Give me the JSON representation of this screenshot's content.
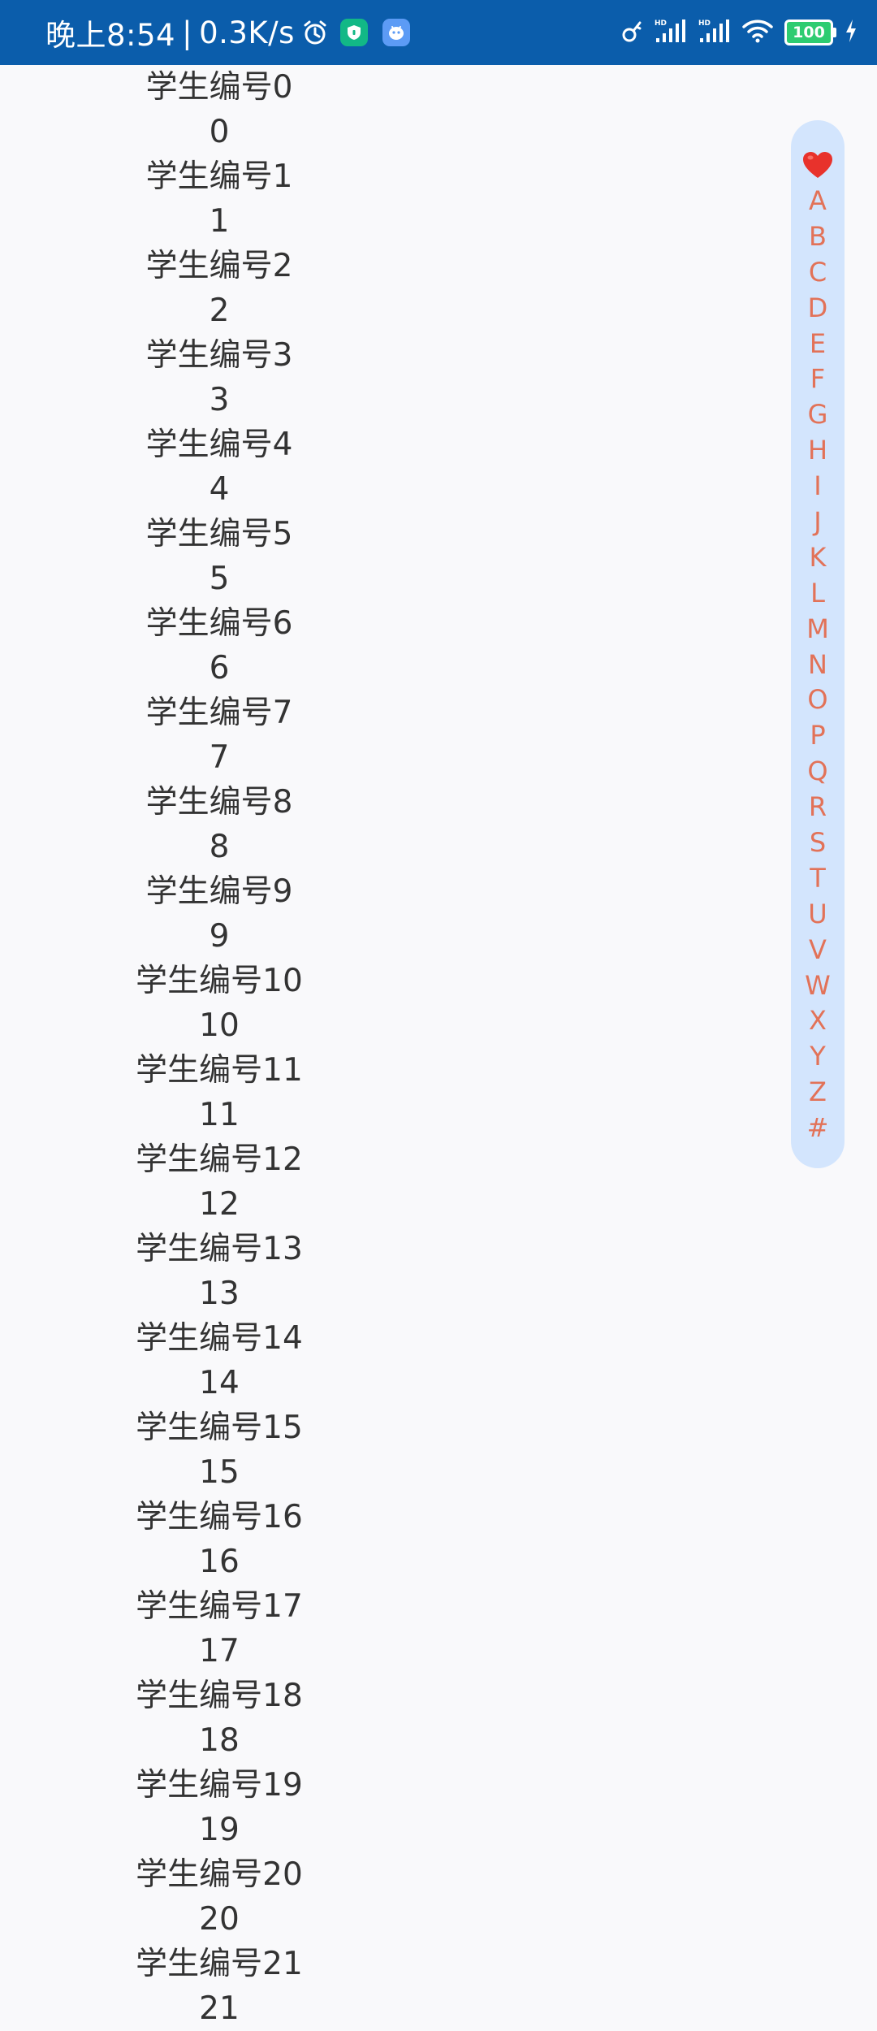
{
  "status_bar": {
    "time_text": "晚上8:54",
    "separator": "|",
    "net_speed": "0.3K/s",
    "battery_level": "100",
    "icons": [
      "alarm-icon",
      "security-app-icon",
      "assistant-app-icon",
      "key-icon",
      "hd-signal-icon",
      "hd-signal-icon",
      "wifi-icon",
      "battery-icon",
      "charging-icon"
    ],
    "colors": {
      "background": "#0b5dab",
      "security_app": "#12b886",
      "assistant_app": "#5c9bf5",
      "battery_fill": "#2ecc71"
    }
  },
  "students": [
    {
      "name": "学生编号0",
      "number": "0"
    },
    {
      "name": "学生编号1",
      "number": "1"
    },
    {
      "name": "学生编号2",
      "number": "2"
    },
    {
      "name": "学生编号3",
      "number": "3"
    },
    {
      "name": "学生编号4",
      "number": "4"
    },
    {
      "name": "学生编号5",
      "number": "5"
    },
    {
      "name": "学生编号6",
      "number": "6"
    },
    {
      "name": "学生编号7",
      "number": "7"
    },
    {
      "name": "学生编号8",
      "number": "8"
    },
    {
      "name": "学生编号9",
      "number": "9"
    },
    {
      "name": "学生编号10",
      "number": "10"
    },
    {
      "name": "学生编号11",
      "number": "11"
    },
    {
      "name": "学生编号12",
      "number": "12"
    },
    {
      "name": "学生编号13",
      "number": "13"
    },
    {
      "name": "学生编号14",
      "number": "14"
    },
    {
      "name": "学生编号15",
      "number": "15"
    },
    {
      "name": "学生编号16",
      "number": "16"
    },
    {
      "name": "学生编号17",
      "number": "17"
    },
    {
      "name": "学生编号18",
      "number": "18"
    },
    {
      "name": "学生编号19",
      "number": "19"
    },
    {
      "name": "学生编号20",
      "number": "20"
    },
    {
      "name": "学生编号21",
      "number": "21"
    }
  ],
  "index_bar": {
    "favorite_icon": "heart-icon",
    "letters": [
      "A",
      "B",
      "C",
      "D",
      "E",
      "F",
      "G",
      "H",
      "I",
      "J",
      "K",
      "L",
      "M",
      "N",
      "O",
      "P",
      "Q",
      "R",
      "S",
      "T",
      "U",
      "V",
      "W",
      "X",
      "Y",
      "Z",
      "#"
    ],
    "colors": {
      "background": "#d3e5fd",
      "letter": "#e27258",
      "heart": "#e8322c"
    }
  }
}
